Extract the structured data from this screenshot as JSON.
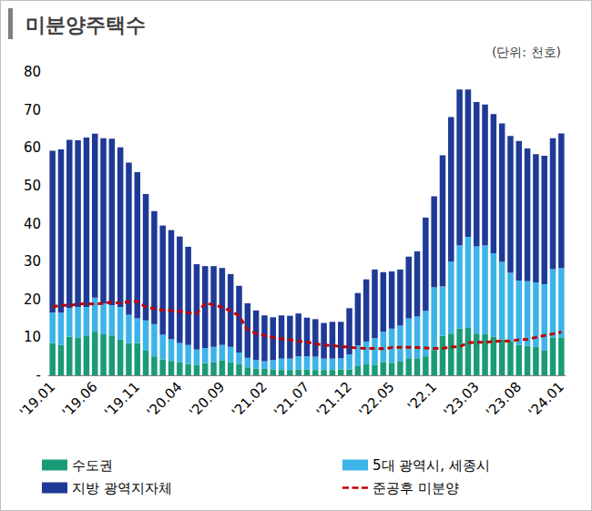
{
  "chart_data": {
    "type": "bar",
    "title": "미분양주택수",
    "subtitle": "(단위: 천호)",
    "stacked": true,
    "grid": false,
    "legend": "bottom",
    "categories": [
      "'19.01",
      null,
      null,
      null,
      null,
      "'19.06",
      null,
      null,
      null,
      null,
      "'19.11",
      null,
      null,
      null,
      null,
      "'20.04",
      null,
      null,
      null,
      null,
      "'20.09",
      null,
      null,
      null,
      null,
      "'21.02",
      null,
      null,
      null,
      null,
      "'21.07",
      null,
      null,
      null,
      null,
      "'21.12",
      null,
      null,
      null,
      null,
      "'22.05",
      null,
      null,
      null,
      null,
      "'22.1",
      null,
      null,
      null,
      null,
      "'23.03",
      null,
      null,
      null,
      null,
      "'23.08",
      null,
      null,
      null,
      null,
      "'24.01"
    ],
    "ylim": [
      0,
      80
    ],
    "yticks": [
      {
        "value": 0,
        "label": "-"
      },
      10,
      20,
      30,
      40,
      50,
      60,
      70,
      80
    ],
    "series": [
      {
        "name": "수도권",
        "type": "bar",
        "color": "#1a9b77",
        "values": [
          8.5,
          8.0,
          10.2,
          10.0,
          10.5,
          11.5,
          10.8,
          10.5,
          9.5,
          8.5,
          8.5,
          6.5,
          5.0,
          4.2,
          3.8,
          3.5,
          3.0,
          2.8,
          3.2,
          3.5,
          4.0,
          3.5,
          3.0,
          2.1,
          1.8,
          1.7,
          1.5,
          1.4,
          1.4,
          1.5,
          1.5,
          1.4,
          1.4,
          1.4,
          1.5,
          1.5,
          2.4,
          2.9,
          2.8,
          3.5,
          3.3,
          3.6,
          4.5,
          4.5,
          5.0,
          6.7,
          10.4,
          11.0,
          12.3,
          12.5,
          11.0,
          10.8,
          10.2,
          9.4,
          9.0,
          8.0,
          7.8,
          7.5,
          6.5,
          10.0,
          10.0
        ]
      },
      {
        "name": "5대 광역시, 세종시",
        "type": "bar",
        "color": "#3db4e8",
        "values": [
          8.0,
          8.5,
          7.5,
          8.0,
          7.5,
          9.0,
          8.2,
          8.0,
          8.5,
          7.5,
          6.5,
          8.0,
          8.5,
          6.5,
          5.7,
          5.0,
          5.0,
          4.0,
          4.0,
          4.0,
          4.0,
          4.0,
          3.0,
          2.5,
          2.2,
          2.0,
          2.5,
          3.0,
          3.0,
          3.5,
          3.5,
          3.5,
          3.0,
          3.0,
          3.0,
          4.0,
          5.5,
          6.0,
          7.0,
          8.0,
          9.0,
          9.5,
          10.5,
          11.0,
          12.0,
          16.5,
          13.0,
          19.0,
          22.0,
          24.0,
          23.0,
          23.5,
          22.0,
          20.5,
          18.0,
          17.0,
          17.0,
          17.0,
          17.5,
          18.0,
          18.3
        ]
      },
      {
        "name": "지방 광역지자체",
        "type": "bar",
        "color": "#1f3a96",
        "values": [
          42.7,
          43.1,
          44.4,
          44.0,
          44.7,
          43.2,
          43.5,
          43.9,
          42.1,
          40.1,
          38.6,
          33.3,
          29.8,
          28.8,
          28.8,
          28.1,
          25.9,
          22.5,
          21.6,
          21.3,
          20.3,
          19.2,
          17.6,
          14.4,
          13.1,
          12.1,
          11.3,
          11.4,
          11.3,
          11.3,
          10.2,
          9.9,
          9.4,
          9.7,
          9.6,
          12.2,
          13.8,
          16.4,
          18.1,
          15.7,
          15.1,
          14.8,
          16.3,
          17.2,
          24.6,
          24.0,
          34.6,
          38.1,
          41.1,
          38.9,
          38.1,
          37.1,
          36.7,
          36.5,
          36.1,
          36.8,
          35.0,
          33.8,
          33.9,
          34.5,
          35.5
        ]
      },
      {
        "name": "준공후 미분양",
        "type": "line",
        "color": "#c00000",
        "line_style": "dashed",
        "marker": "none",
        "values": [
          18.0,
          18.5,
          18.4,
          18.8,
          18.9,
          18.8,
          19.0,
          19.3,
          19.0,
          19.4,
          19.5,
          18.0,
          17.6,
          17.2,
          17.0,
          16.9,
          16.5,
          16.3,
          19.0,
          18.6,
          17.9,
          17.0,
          15.7,
          12.0,
          11.0,
          10.5,
          10.0,
          9.6,
          9.4,
          9.0,
          8.8,
          8.3,
          8.0,
          7.8,
          7.6,
          7.4,
          7.2,
          7.1,
          7.1,
          7.0,
          7.3,
          7.4,
          7.4,
          7.3,
          7.2,
          7.1,
          7.1,
          7.5,
          7.5,
          8.6,
          8.7,
          8.7,
          8.9,
          9.0,
          9.0,
          9.4,
          9.5,
          10.0,
          10.5,
          10.9,
          11.4
        ]
      }
    ]
  }
}
